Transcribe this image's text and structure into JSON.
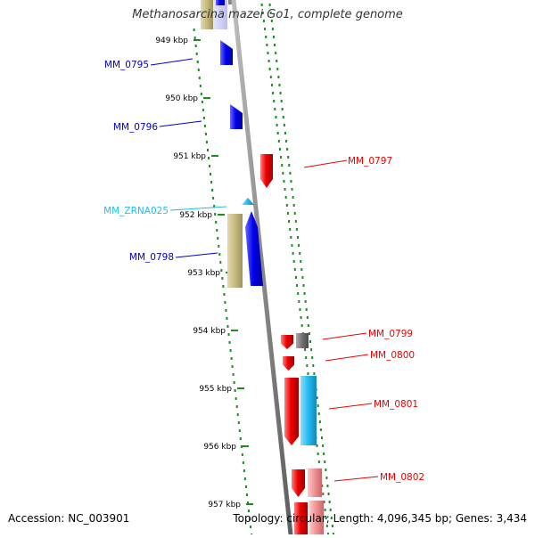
{
  "title": "Methanosarcina mazei Go1, complete genome",
  "footer": {
    "accession": "Accession: NC_003901",
    "summary": "Topology: circular; Length: 4,096,345 bp; Genes: 3,434"
  },
  "colors": {
    "reverse_cds": "#0000cc",
    "forward_cds": "#ee0000",
    "rna": "#22bbee",
    "orf_tan": "#c7bd82",
    "gc_gray": "#777777",
    "tick_green": "#1e8c1e",
    "backbone": "#8c8c8c"
  },
  "ticks": [
    {
      "label": "949 kbp"
    },
    {
      "label": "950 kbp"
    },
    {
      "label": "951 kbp"
    },
    {
      "label": "952 kbp"
    },
    {
      "label": "953 kbp"
    },
    {
      "label": "954 kbp"
    },
    {
      "label": "955 kbp"
    },
    {
      "label": "956 kbp"
    },
    {
      "label": "957 kbp"
    }
  ],
  "genes": [
    {
      "label": "MM_0795",
      "strand": "reverse"
    },
    {
      "label": "MM_0796",
      "strand": "reverse"
    },
    {
      "label": "MM_0797",
      "strand": "forward"
    },
    {
      "label": "MM_ZRNA025",
      "strand": "rna"
    },
    {
      "label": "MM_0798",
      "strand": "reverse"
    },
    {
      "label": "MM_0799",
      "strand": "forward"
    },
    {
      "label": "MM_0800",
      "strand": "forward"
    },
    {
      "label": "MM_0801",
      "strand": "forward"
    },
    {
      "label": "MM_0802",
      "strand": "forward"
    }
  ]
}
